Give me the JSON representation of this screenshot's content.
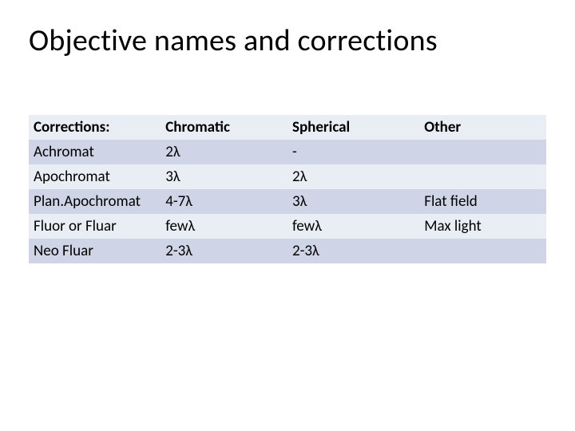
{
  "title": "Objective names and corrections",
  "table": {
    "columns": [
      "Corrections:",
      "Chromatic",
      "Spherical",
      "Other"
    ],
    "rows": [
      [
        "Achromat",
        "2λ",
        "-",
        ""
      ],
      [
        "Apochromat",
        "3λ",
        "2λ",
        ""
      ],
      [
        "Plan.Apochromat",
        "4-7λ",
        "3λ",
        "Flat field"
      ],
      [
        "Fluor or Fluar",
        "fewλ",
        "fewλ",
        "Max light"
      ],
      [
        "Neo Fluar",
        "2-3λ",
        "2-3λ",
        ""
      ]
    ],
    "band_colors": {
      "even": "#e9edf4",
      "odd": "#cfd5e6"
    },
    "header_fontweight": "bold",
    "cell_fontsize": 19,
    "title_fontsize": 38,
    "background_color": "#ffffff",
    "text_color": "#000000",
    "col_widths_pct": [
      25.5,
      24.5,
      25.5,
      24.5
    ]
  }
}
